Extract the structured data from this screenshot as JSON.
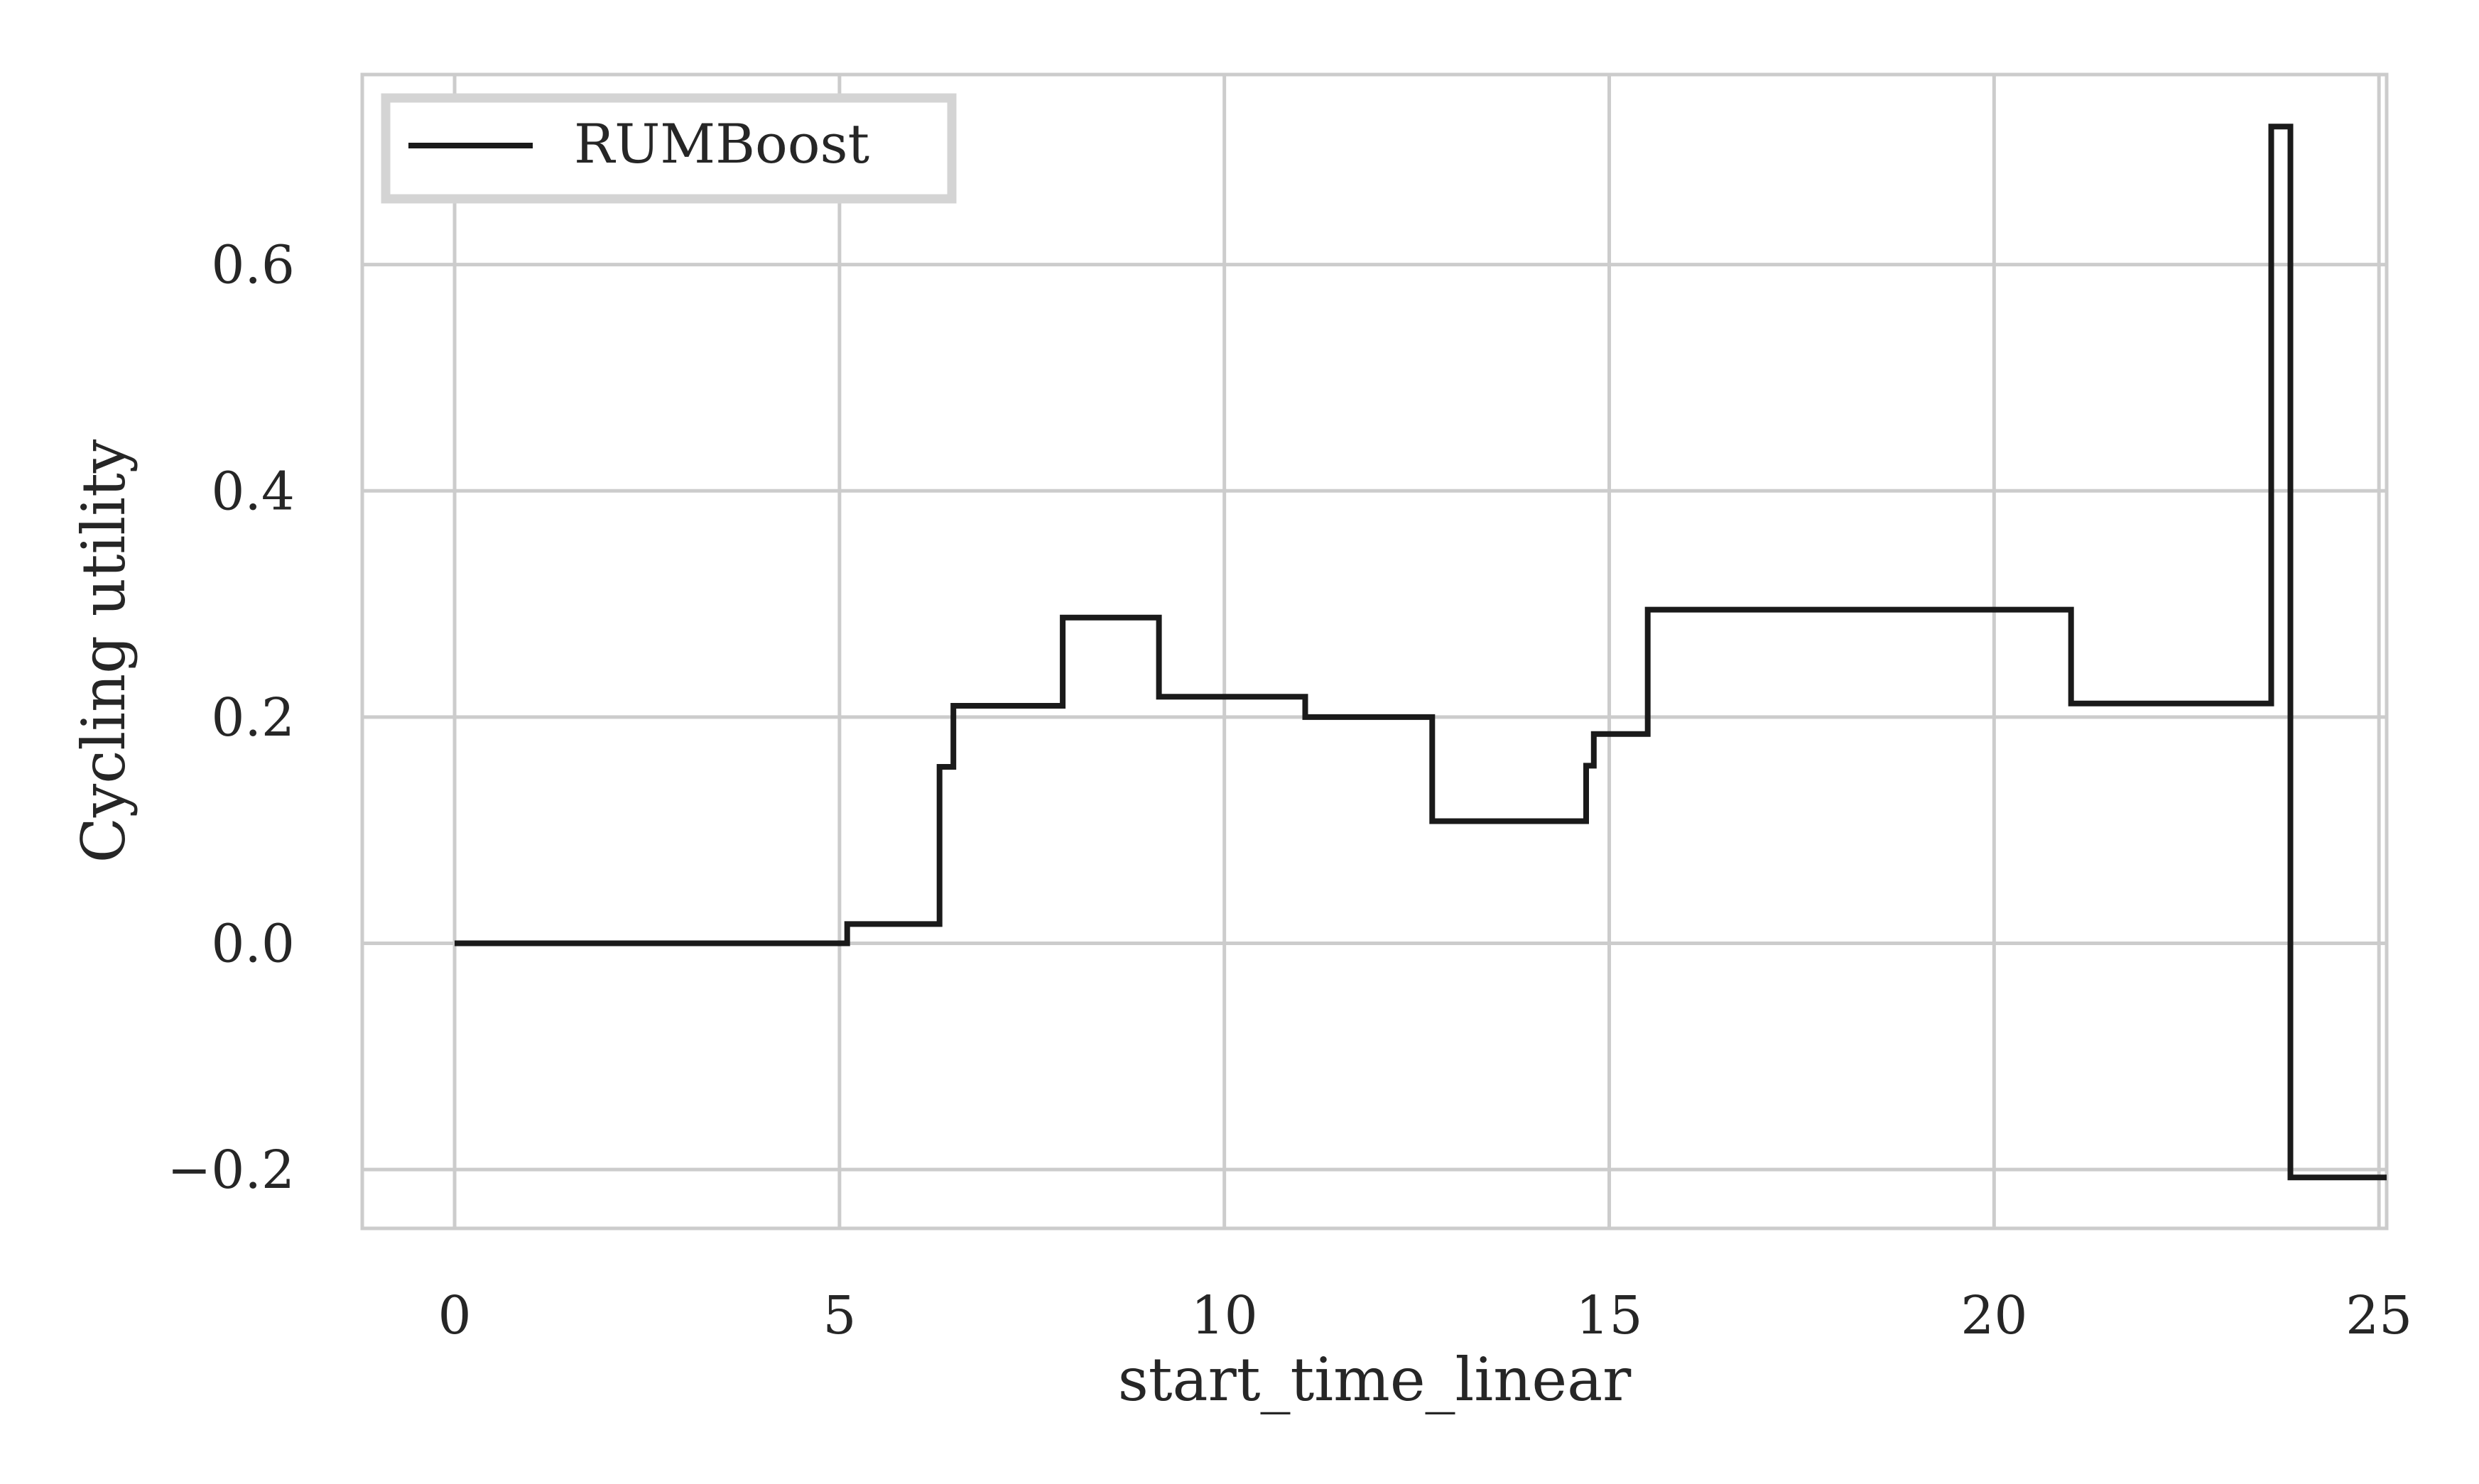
{
  "chart_data": {
    "type": "line",
    "step": "post",
    "xlabel": "start_time_linear",
    "ylabel": "Cycling utility",
    "xlim": [
      -1.2,
      25.1
    ],
    "ylim": [
      -0.252,
      0.768
    ],
    "xticks": [
      0,
      5,
      10,
      15,
      20,
      25
    ],
    "xtick_labels": [
      "0",
      "5",
      "10",
      "15",
      "20",
      "25"
    ],
    "yticks": [
      -0.2,
      0.0,
      0.2,
      0.4,
      0.6
    ],
    "ytick_labels": [
      "−0.2",
      "0.0",
      "0.2",
      "0.4",
      "0.6"
    ],
    "grid": true,
    "legend_position": "top-left",
    "series": [
      {
        "name": "RUMBoost",
        "color": "#1a1a1a",
        "x": [
          0.0,
          5.1,
          6.3,
          6.48,
          7.9,
          9.15,
          10.95,
          11.05,
          12.7,
          14.7,
          14.8,
          15.5,
          21.0,
          23.6,
          23.85,
          25.1
        ],
        "y": [
          0.0,
          0.017,
          0.156,
          0.21,
          0.288,
          0.218,
          0.218,
          0.2,
          0.108,
          0.157,
          0.185,
          0.295,
          0.212,
          0.722,
          -0.207,
          -0.207
        ]
      }
    ]
  }
}
